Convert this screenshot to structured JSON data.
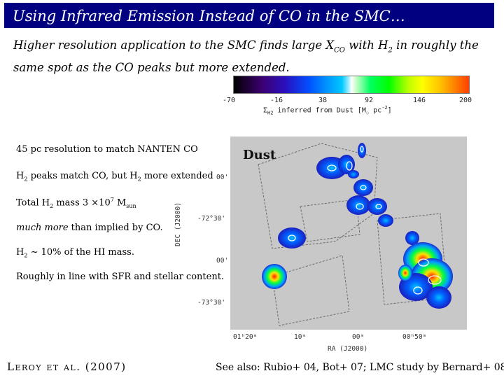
{
  "slide": {
    "title": "Using Infrared Emission Instead of CO in the SMC…",
    "subtitle_a": "Higher resolution application to the SMC finds large X",
    "subtitle_sub1": "CO",
    "subtitle_b": " with H",
    "subtitle_sub2": "2",
    "subtitle_c": " in roughly the same spot as the CO peaks but more extended."
  },
  "colorbar": {
    "ticks": [
      "-70",
      "-16",
      "38",
      "92",
      "146",
      "200"
    ],
    "label_a": "Σ",
    "label_sub": "H2",
    "label_b": " inferred from Dust [M",
    "label_sub2": "☉",
    "label_c": " pc",
    "label_sup": "-2",
    "label_d": "]"
  },
  "bullets": {
    "b1": "45 pc resolution to match NANTEN CO",
    "b2_a": "H",
    "b2_sub1": "2",
    "b2_b": " peaks match CO, but H",
    "b2_sub2": "2",
    "b2_c": " more extended",
    "b3_a": "Total H",
    "b3_sub": "2",
    "b3_b": " mass 3 ×10",
    "b3_sup": "7",
    "b3_c": " M",
    "b3_sub2": "sun",
    "b4_em": "much more",
    "b4_rest": " than implied by CO.",
    "b5_a": "H",
    "b5_sub": "2",
    "b5_b": " ~ 10% of the HI mass.",
    "b6": "Roughly in line with SFR and stellar content."
  },
  "map": {
    "label": "Dust",
    "y_ticks": [
      "00'",
      "-72°30'",
      "00'",
      "-73°30'"
    ],
    "x_ticks": [
      "01ʰ20ᵐ",
      "10ᵐ",
      "00ᵐ",
      "00ʰ50ᵐ"
    ],
    "x_label": "RA (J2000)",
    "y_label": "DEC (J2000)"
  },
  "footer": {
    "citation": "Leroy et al. (2007)",
    "see_also": "See also: Rubio+ 04, Bot+ 07; LMC study by Bernard+ 08"
  },
  "colors": {
    "title_bar": "#000080",
    "map_background": "#c8c8c8"
  }
}
